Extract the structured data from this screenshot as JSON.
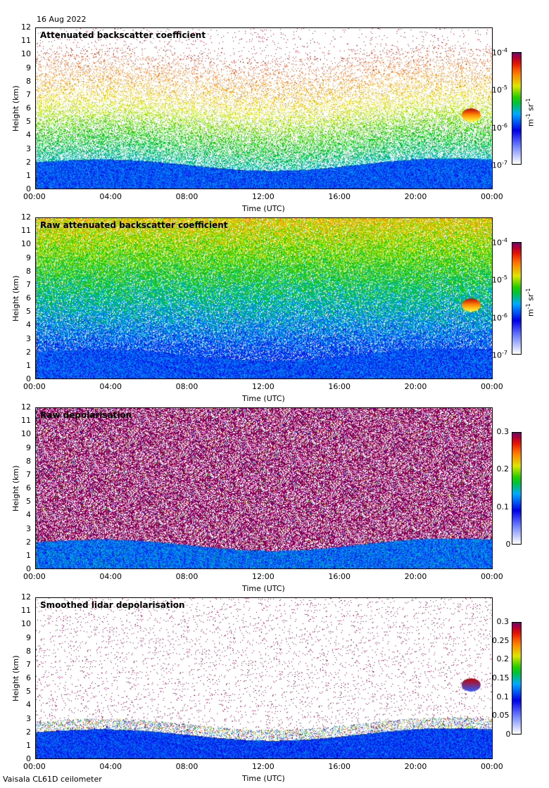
{
  "date": "16 Aug 2022",
  "instrument": "Vaisala CL61D ceilometer",
  "colors": [
    "#ffffff",
    "#0000ff",
    "#00c000",
    "#ffff00",
    "#ff0000",
    "#800080"
  ],
  "chart_data": [
    {
      "type": "heatmap",
      "title": "Attenuated backscatter coefficient",
      "xlabel": "Time (UTC)",
      "ylabel": "Height (km)",
      "xticks": [
        "00:00",
        "04:00",
        "08:00",
        "12:00",
        "16:00",
        "20:00",
        "00:00"
      ],
      "yticks": [
        "0",
        "1",
        "2",
        "3",
        "4",
        "5",
        "6",
        "7",
        "8",
        "9",
        "10",
        "11",
        "12"
      ],
      "ylim": [
        0,
        12
      ],
      "colorbar": {
        "scale": "log",
        "range": [
          1e-07,
          0.0001
        ],
        "ticks": [
          {
            "base": "10",
            "exp": "-4"
          },
          {
            "base": "10",
            "exp": "-5"
          },
          {
            "base": "10",
            "exp": "-6"
          },
          {
            "base": "10",
            "exp": "-7"
          }
        ],
        "unit": {
          "a": "m",
          "ea": "-1",
          "b": " sr",
          "eb": "-1"
        }
      },
      "features": [
        {
          "label": "boundary layer",
          "time_h": [
            0,
            24
          ],
          "height_km": [
            0,
            2.2
          ]
        },
        {
          "label": "cloud",
          "time_h": [
            22.4,
            23.4
          ],
          "height_km": [
            5.0,
            6.0
          ]
        }
      ]
    },
    {
      "type": "heatmap",
      "title": "Raw attenuated backscatter coefficient",
      "xlabel": "Time (UTC)",
      "ylabel": "Height (km)",
      "xticks": [
        "00:00",
        "04:00",
        "08:00",
        "12:00",
        "16:00",
        "20:00",
        "00:00"
      ],
      "yticks": [
        "0",
        "1",
        "2",
        "3",
        "4",
        "5",
        "6",
        "7",
        "8",
        "9",
        "10",
        "11",
        "12"
      ],
      "ylim": [
        0,
        12
      ],
      "colorbar": {
        "scale": "log",
        "range": [
          1e-07,
          0.0001
        ],
        "ticks": [
          {
            "base": "10",
            "exp": "-4"
          },
          {
            "base": "10",
            "exp": "-5"
          },
          {
            "base": "10",
            "exp": "-6"
          },
          {
            "base": "10",
            "exp": "-7"
          }
        ],
        "unit": {
          "a": "m",
          "ea": "-1",
          "b": " sr",
          "eb": "-1"
        }
      },
      "features": [
        {
          "label": "boundary layer",
          "time_h": [
            0,
            24
          ],
          "height_km": [
            0,
            2.0
          ]
        },
        {
          "label": "cloud",
          "time_h": [
            22.4,
            23.4
          ],
          "height_km": [
            5.0,
            6.0
          ]
        }
      ]
    },
    {
      "type": "heatmap",
      "title": "Raw depolarisation",
      "xlabel": "Time (UTC)",
      "ylabel": "Height (km)",
      "xticks": [
        "00:00",
        "04:00",
        "08:00",
        "12:00",
        "16:00",
        "20:00",
        "00:00"
      ],
      "yticks": [
        "0",
        "1",
        "2",
        "3",
        "4",
        "5",
        "6",
        "7",
        "8",
        "9",
        "10",
        "11",
        "12"
      ],
      "ylim": [
        0,
        12
      ],
      "colorbar": {
        "scale": "linear",
        "range": [
          0,
          0.3
        ],
        "ticks": [
          {
            "base": "0.3"
          },
          {
            "base": "0.2"
          },
          {
            "base": "0.1"
          },
          {
            "base": "0"
          }
        ]
      }
    },
    {
      "type": "heatmap",
      "title": "Smoothed lidar depolarisation",
      "xlabel": "Time (UTC)",
      "ylabel": "Height (km)",
      "xticks": [
        "00:00",
        "04:00",
        "08:00",
        "12:00",
        "16:00",
        "20:00",
        "00:00"
      ],
      "yticks": [
        "0",
        "1",
        "2",
        "3",
        "4",
        "5",
        "6",
        "7",
        "8",
        "9",
        "10",
        "11",
        "12"
      ],
      "ylim": [
        0,
        12
      ],
      "colorbar": {
        "scale": "linear",
        "range": [
          0,
          0.3
        ],
        "ticks": [
          {
            "base": "0.3"
          },
          {
            "base": "0.25"
          },
          {
            "base": "0.2"
          },
          {
            "base": "0.15"
          },
          {
            "base": "0.1"
          },
          {
            "base": "0.05"
          },
          {
            "base": "0"
          }
        ]
      }
    }
  ]
}
